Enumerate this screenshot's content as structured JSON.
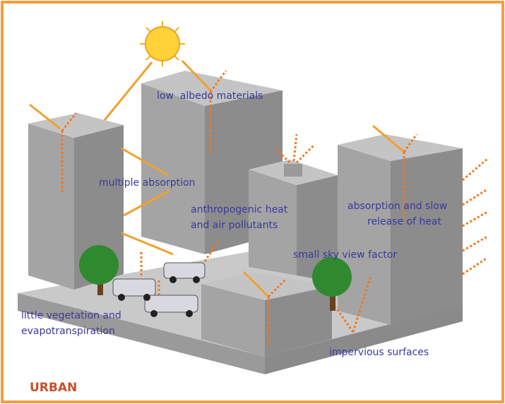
{
  "labels": [
    {
      "lines": [
        "low  albedo materials"
      ]
    },
    {
      "lines": [
        "multiple absorption"
      ]
    },
    {
      "lines": [
        "anthropogenic heat",
        "and air pollutants"
      ]
    },
    {
      "lines": [
        "absorption and slow",
        "release of heat"
      ]
    },
    {
      "lines": [
        "small sky view factor"
      ]
    },
    {
      "lines": [
        "little vegetation and",
        "evapotranspiration"
      ]
    },
    {
      "lines": [
        "impervious surfaces"
      ]
    }
  ],
  "footer": "URBAN"
}
